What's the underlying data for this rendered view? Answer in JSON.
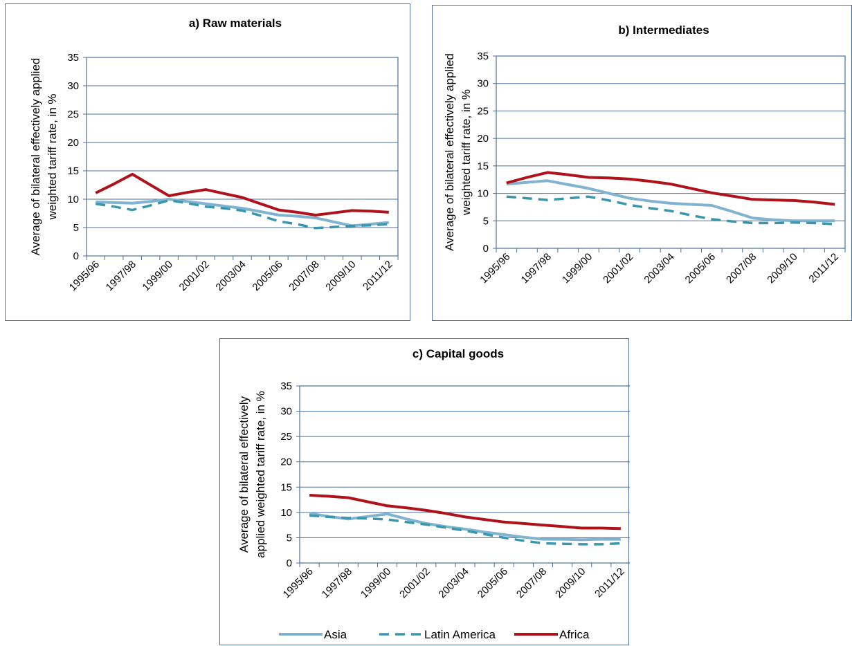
{
  "colors": {
    "asia": "#7fb3cf",
    "latin_america": "#3a96ad",
    "africa": "#b0121b",
    "grid": "#4a6f9c"
  },
  "legend": [
    {
      "key": "asia",
      "label": "Asia",
      "style": "solid"
    },
    {
      "key": "latin_america",
      "label": "Latin America",
      "style": "dashed"
    },
    {
      "key": "africa",
      "label": "Africa",
      "style": "solid"
    }
  ],
  "chart_data": [
    {
      "type": "line",
      "title": "a) Raw materials",
      "ylabel": [
        "Average of bilateral effectively applied",
        "weighted tariff rate, in %"
      ],
      "xlabel": "",
      "ylim": [
        0,
        35
      ],
      "yticks": [
        "0",
        "5",
        "10",
        "15",
        "20",
        "25",
        "30",
        "35"
      ],
      "categories": [
        "1995/96",
        "1996/97",
        "1997/98",
        "1998/99",
        "1999/00",
        "2000/01",
        "2001/02",
        "2002/03",
        "2003/04",
        "2004/05",
        "2005/06",
        "2006/07",
        "2007/08",
        "2008/09",
        "2009/10",
        "2010/11",
        "2011/12"
      ],
      "tick_labels": [
        "1995/96",
        "",
        "1997/98",
        "",
        "1999/00",
        "",
        "2001/02",
        "",
        "2003/04",
        "",
        "2005/06",
        "",
        "2007/08",
        "",
        "2009/10",
        "",
        "2011/12"
      ],
      "grid": true,
      "series": [
        {
          "name": "Asia",
          "values": [
            9.5,
            9.4,
            9.3,
            9.6,
            10.0,
            9.6,
            9.2,
            8.8,
            8.4,
            7.8,
            7.2,
            7.0,
            6.7,
            6.0,
            5.3,
            5.6,
            5.9
          ]
        },
        {
          "name": "Latin America",
          "values": [
            9.2,
            8.7,
            8.1,
            8.9,
            9.8,
            9.3,
            8.7,
            8.4,
            8.0,
            7.1,
            6.1,
            5.6,
            4.9,
            5.1,
            5.3,
            5.4,
            5.6
          ]
        },
        {
          "name": "Africa",
          "values": [
            11.1,
            12.7,
            14.4,
            12.5,
            10.6,
            11.2,
            11.7,
            11.0,
            10.3,
            9.2,
            8.1,
            7.7,
            7.2,
            7.6,
            8.0,
            7.9,
            7.7
          ]
        }
      ]
    },
    {
      "type": "line",
      "title": "b) Intermediates",
      "ylabel": [
        "Average of bilateral effectively applied",
        "weighted tariff rate, in %"
      ],
      "xlabel": "",
      "ylim": [
        0,
        35
      ],
      "yticks": [
        "0",
        "5",
        "10",
        "15",
        "20",
        "25",
        "30",
        "35"
      ],
      "categories": [
        "1995/96",
        "1996/97",
        "1997/98",
        "1998/99",
        "1999/00",
        "2000/01",
        "2001/02",
        "2002/03",
        "2003/04",
        "2004/05",
        "2005/06",
        "2006/07",
        "2007/08",
        "2008/09",
        "2009/10",
        "2010/11",
        "2011/12"
      ],
      "tick_labels": [
        "1995/96",
        "",
        "1997/98",
        "",
        "1999/00",
        "",
        "2001/02",
        "",
        "2003/04",
        "",
        "2005/06",
        "",
        "2007/08",
        "",
        "2009/10",
        "",
        "2011/12"
      ],
      "grid": true,
      "series": [
        {
          "name": "Asia",
          "values": [
            11.7,
            12.0,
            12.3,
            11.6,
            10.9,
            10.0,
            9.1,
            8.6,
            8.2,
            8.0,
            7.8,
            6.7,
            5.5,
            5.2,
            5.0,
            5.0,
            5.0
          ]
        },
        {
          "name": "Latin America",
          "values": [
            9.4,
            9.1,
            8.8,
            9.1,
            9.4,
            8.7,
            7.9,
            7.3,
            6.8,
            6.0,
            5.3,
            4.9,
            4.6,
            4.6,
            4.7,
            4.6,
            4.4
          ]
        },
        {
          "name": "Africa",
          "values": [
            11.9,
            12.9,
            13.8,
            13.4,
            12.9,
            12.8,
            12.6,
            12.2,
            11.7,
            10.9,
            10.1,
            9.5,
            8.9,
            8.8,
            8.7,
            8.4,
            8.0
          ]
        }
      ]
    },
    {
      "type": "line",
      "title": "c) Capital goods",
      "ylabel": [
        "Average of bilateral effectively",
        "applied weighted tariff rate, in %"
      ],
      "xlabel": "",
      "ylim": [
        0,
        35
      ],
      "yticks": [
        "0",
        "5",
        "10",
        "15",
        "20",
        "25",
        "30",
        "35"
      ],
      "categories": [
        "1995/96",
        "1996/97",
        "1997/98",
        "1998/99",
        "1999/00",
        "2000/01",
        "2001/02",
        "2002/03",
        "2003/04",
        "2004/05",
        "2005/06",
        "2006/07",
        "2007/08",
        "2008/09",
        "2009/10",
        "2010/11",
        "2011/12"
      ],
      "tick_labels": [
        "1995/96",
        "",
        "1997/98",
        "",
        "1999/00",
        "",
        "2001/02",
        "",
        "2003/04",
        "",
        "2005/06",
        "",
        "2007/08",
        "",
        "2009/10",
        "",
        "2011/12"
      ],
      "grid": true,
      "series": [
        {
          "name": "Asia",
          "values": [
            9.8,
            9.2,
            8.7,
            9.2,
            9.7,
            8.7,
            7.8,
            7.2,
            6.7,
            6.1,
            5.6,
            5.1,
            4.7,
            4.7,
            4.6,
            4.7,
            4.7
          ]
        },
        {
          "name": "Latin America",
          "values": [
            9.4,
            9.1,
            8.9,
            8.8,
            8.6,
            8.1,
            7.6,
            7.0,
            6.4,
            5.7,
            5.0,
            4.4,
            3.9,
            3.8,
            3.7,
            3.7,
            3.9
          ]
        },
        {
          "name": "Africa",
          "values": [
            13.4,
            13.2,
            12.9,
            12.1,
            11.3,
            10.9,
            10.4,
            9.8,
            9.1,
            8.6,
            8.1,
            7.8,
            7.5,
            7.2,
            6.9,
            6.9,
            6.8
          ]
        }
      ]
    }
  ]
}
